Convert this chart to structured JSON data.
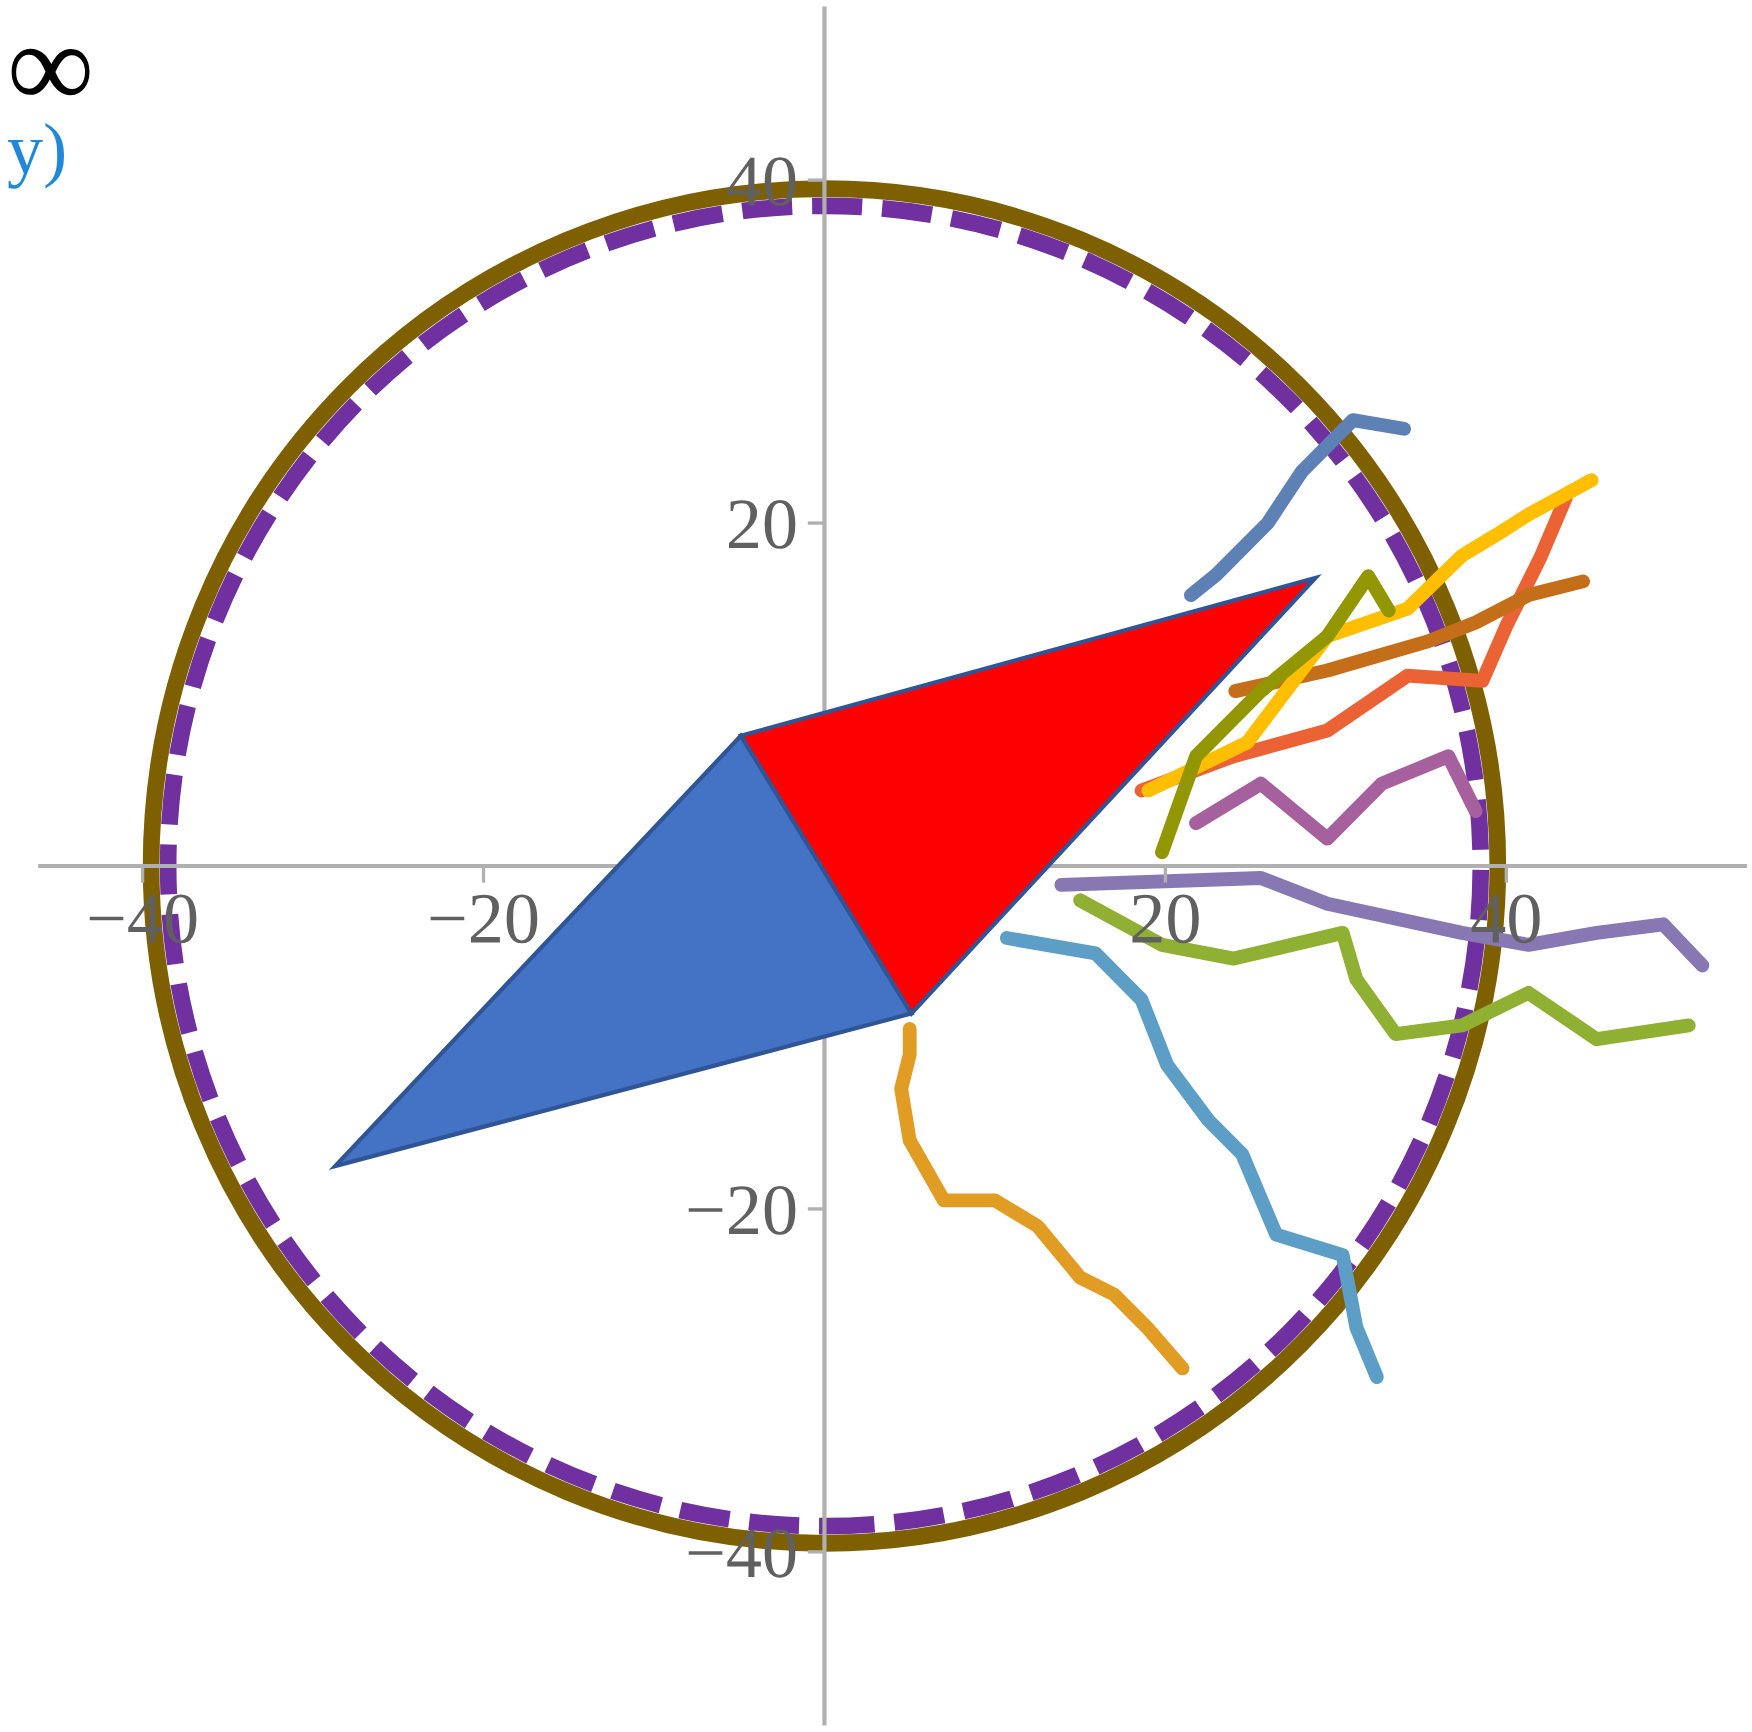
{
  "chart_data": {
    "type": "line",
    "xlim": [
      -46,
      54
    ],
    "ylim": [
      -50,
      50
    ],
    "xticks": [
      -40,
      -20,
      20,
      40
    ],
    "yticks": [
      -40,
      -20,
      20,
      40
    ],
    "grid": false,
    "annotations": [
      "∞",
      "y)"
    ],
    "series": [
      {
        "color": "#5e81b5",
        "x": [
          21.5,
          23,
          26,
          28,
          31,
          34
        ],
        "values": [
          15.8,
          17,
          20,
          23,
          26,
          25.5
        ]
      },
      {
        "color": "#e19c24",
        "x": [
          5,
          5,
          4.5,
          5,
          7,
          10,
          12.5,
          15,
          17,
          19,
          21
        ],
        "values": [
          -9.5,
          -11,
          -13,
          -16,
          -19.5,
          -19.5,
          -21,
          -24,
          -25,
          -27,
          -29.3
        ]
      },
      {
        "color": "#8fb032",
        "x": [
          15,
          19.8,
          24,
          30.4,
          31.2,
          33.5,
          37.4,
          41.3,
          45.3,
          50.7
        ],
        "values": [
          -2,
          -4.6,
          -5.4,
          -3.9,
          -6.6,
          -9.8,
          -9.3,
          -7.4,
          -10.1,
          -9.3
        ]
      },
      {
        "color": "#eb6235",
        "x": [
          18.6,
          24,
          29.5,
          34.2,
          38.6,
          40,
          42,
          43.5
        ],
        "values": [
          4.4,
          6.4,
          7.9,
          11.1,
          10.8,
          14,
          18,
          21.5
        ]
      },
      {
        "color": "#8778b3",
        "x": [
          13.9,
          25.6,
          29.5,
          37.4,
          41.3,
          45.3,
          49.2,
          51.5
        ],
        "values": [
          -1.1,
          -0.7,
          -2.2,
          -3.9,
          -4.6,
          -3.9,
          -3.4,
          -5.8
        ]
      },
      {
        "color": "#c56e1a",
        "x": [
          24.1,
          29.5,
          35.4,
          38.2,
          41.3,
          44.5
        ],
        "values": [
          10.2,
          11.4,
          13.1,
          14.2,
          15.8,
          16.6
        ]
      },
      {
        "color": "#5d9ec7",
        "x": [
          10.7,
          15.9,
          18.6,
          20.1,
          22.5,
          24.5,
          26.5,
          30.4,
          31.2,
          32.4
        ],
        "values": [
          -4.2,
          -5.1,
          -7.8,
          -11.6,
          -14.8,
          -16.8,
          -21.5,
          -22.7,
          -26.9,
          -29.8
        ]
      },
      {
        "color": "#ffbf00",
        "x": [
          19,
          24.8,
          29.5,
          34.2,
          37.4,
          39.4,
          41.3,
          45
        ],
        "values": [
          4.4,
          7.2,
          13.4,
          15,
          18.1,
          19.3,
          20.5,
          22.5
        ]
      },
      {
        "color": "#a5609d",
        "x": [
          21.8,
          25.6,
          29.5,
          32.7,
          36.6,
          38.2
        ],
        "values": [
          2.5,
          4.8,
          1.6,
          4.8,
          6.4,
          3.2
        ]
      },
      {
        "color": "#929600",
        "x": [
          19.8,
          21.8,
          25.6,
          29.5,
          31.9,
          33.1
        ],
        "values": [
          0.8,
          6.4,
          10.2,
          13.4,
          16.9,
          14.9
        ]
      },
      {
        "type": "area",
        "color": "#4472c4",
        "x": [
          -4.9,
          -28.7,
          5.1,
          -4.9
        ],
        "values": [
          7.6,
          -17.5,
          -8.6,
          7.6
        ]
      },
      {
        "type": "area",
        "color": "#ff0000",
        "x": [
          -4.9,
          28.8,
          5.1,
          -4.9
        ],
        "values": [
          7.6,
          16.8,
          -8.6,
          7.6
        ]
      }
    ]
  }
}
